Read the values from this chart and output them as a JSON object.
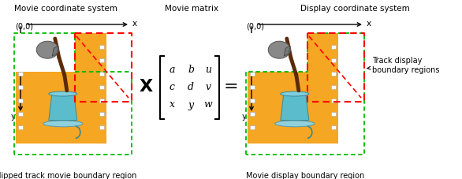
{
  "title_left": "Movie coordinate system",
  "title_middle": "Movie matrix",
  "title_right": "Display coordinate system",
  "label_bottom_left": "Clipped track movie boundary region",
  "label_bottom_right": "Movie display boundary region",
  "label_track": "Track display\nboundary regions",
  "matrix_elements": [
    [
      "a",
      "b",
      "u"
    ],
    [
      "c",
      "d",
      "v"
    ],
    [
      "x",
      "y",
      "w"
    ]
  ],
  "operator_x": "X",
  "operator_eq": "=",
  "color_green_dashed": "#00bb00",
  "color_red_dashed": "#ff0000",
  "color_orange_film": "#f5a623",
  "color_teal_cup": "#5bbccc",
  "color_brown_coffee": "#6b3a2a",
  "color_axis": "#000000",
  "color_white": "#ffffff",
  "font_size_title": 7.5,
  "font_size_label": 7,
  "font_size_matrix": 9,
  "font_size_operator": 13,
  "font_size_coord": 7
}
